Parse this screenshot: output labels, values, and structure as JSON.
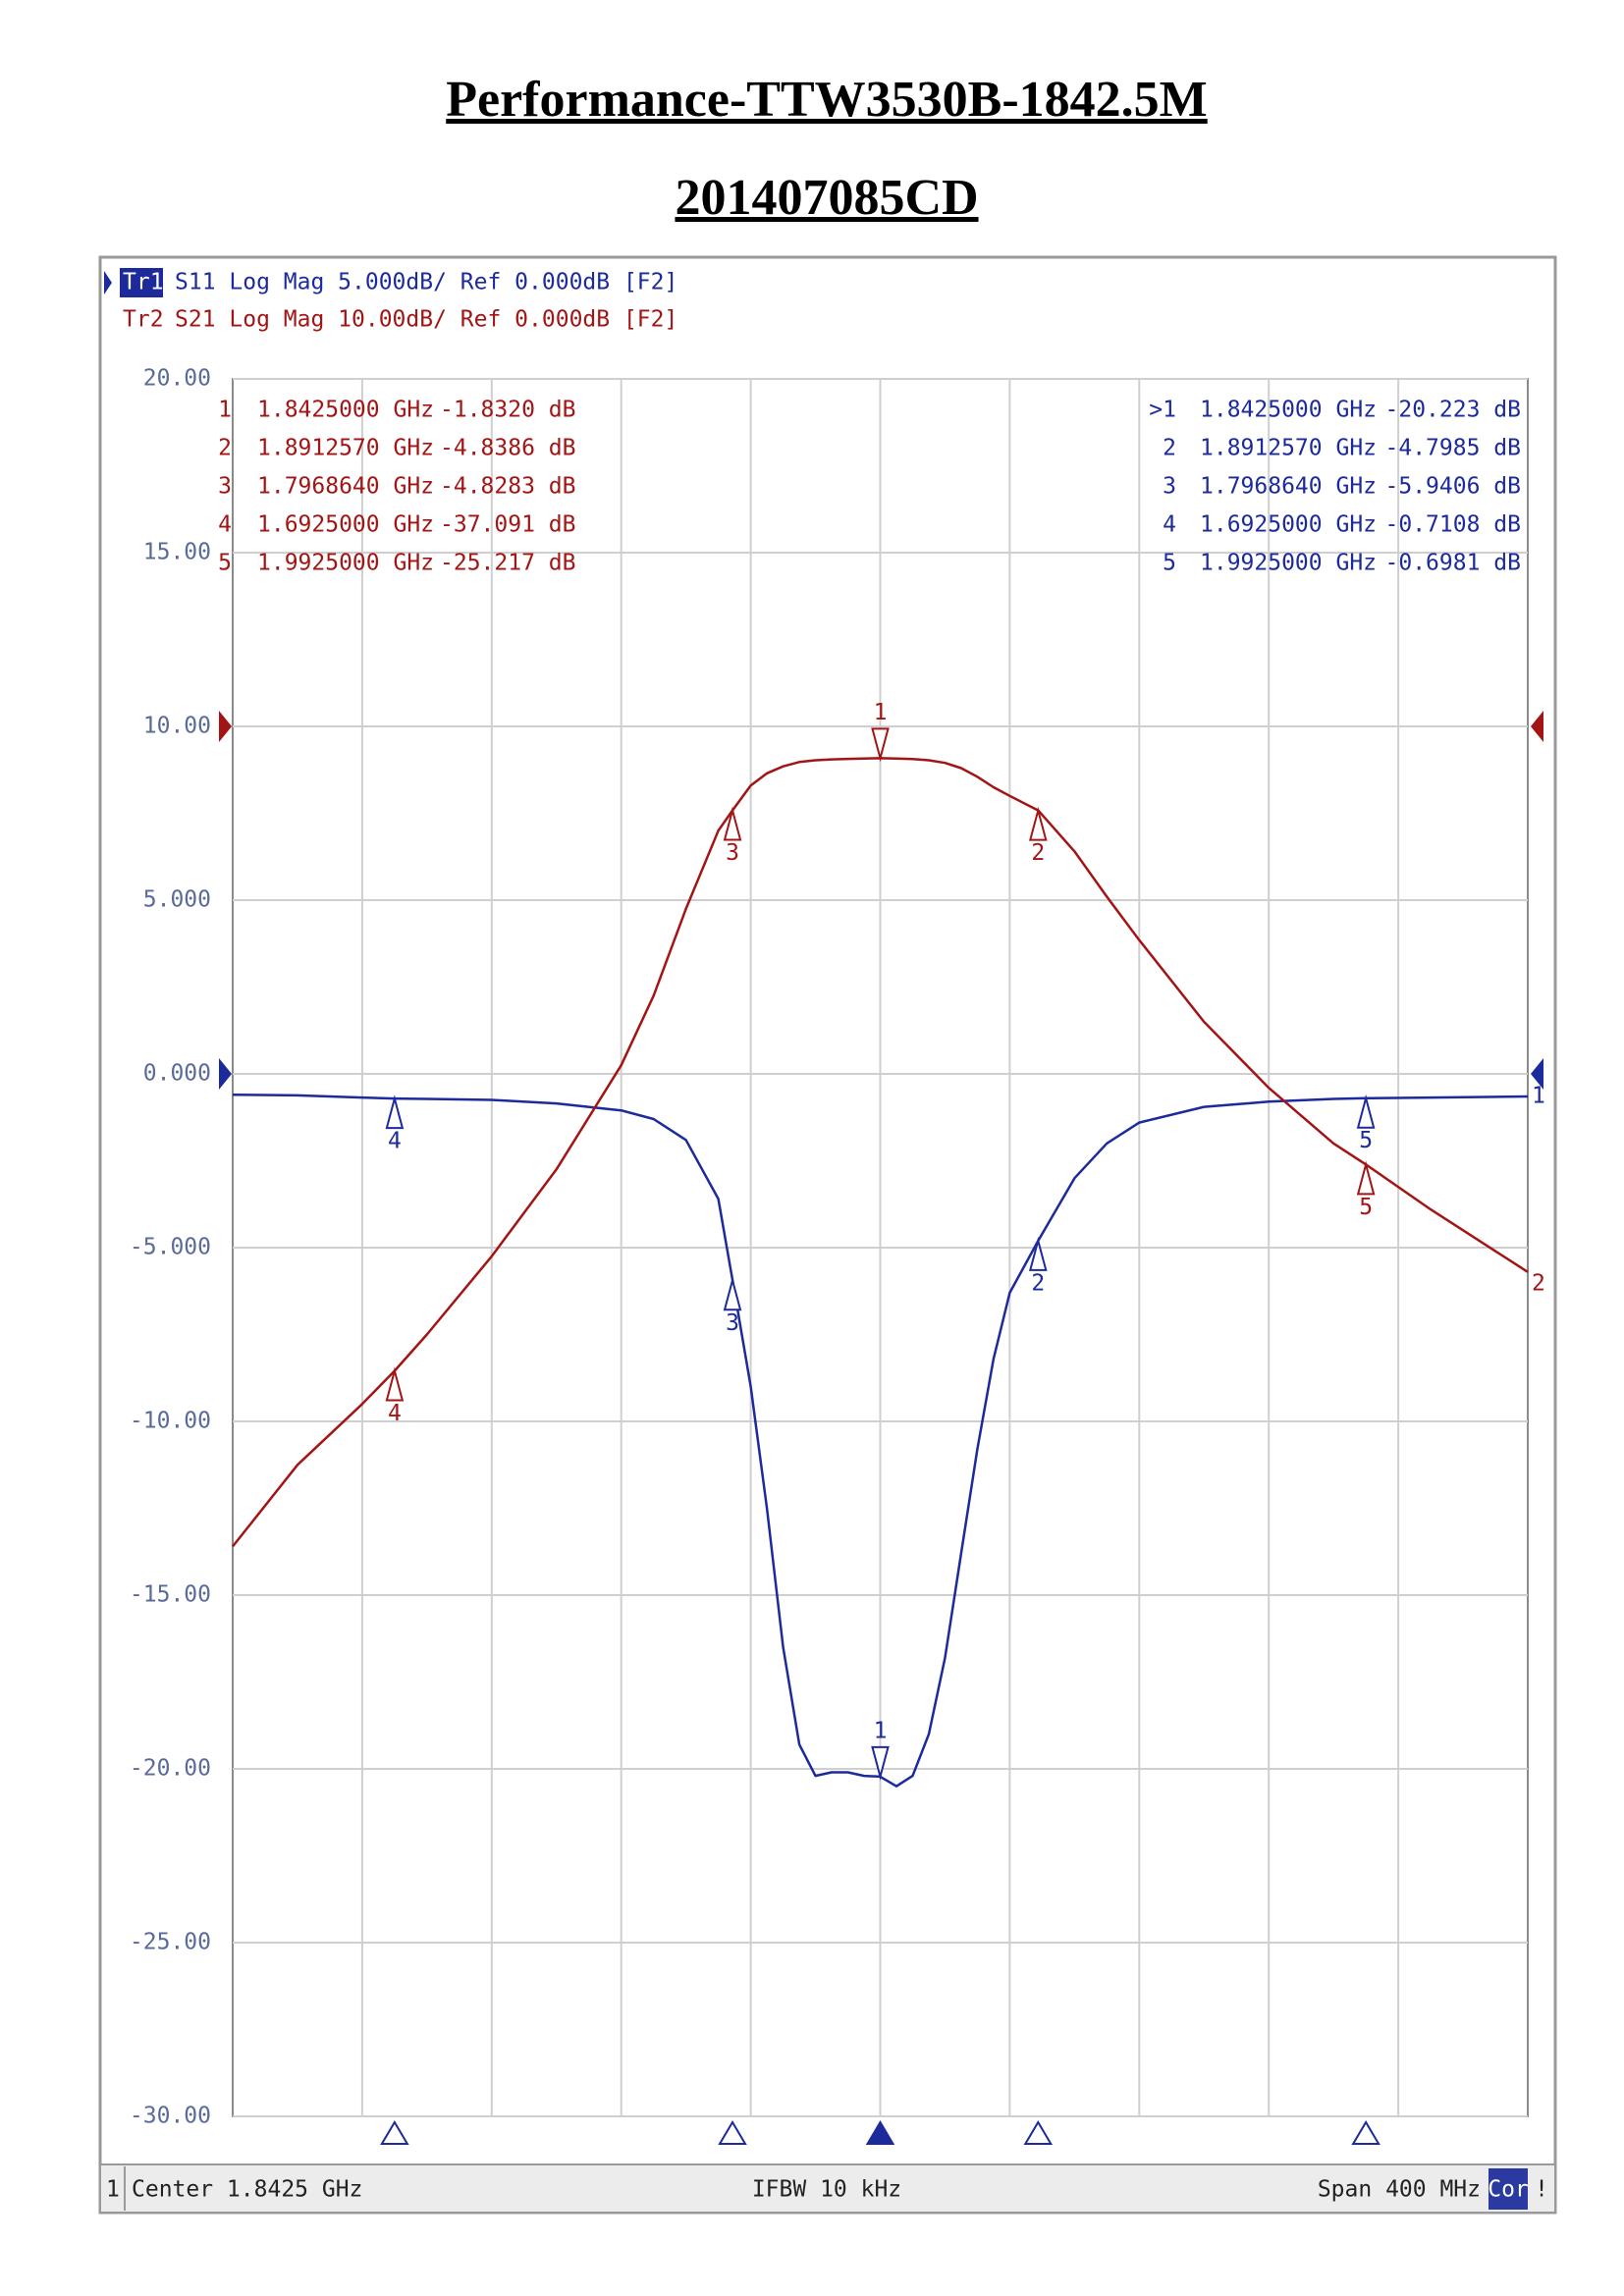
{
  "chart_data": {
    "type": "line",
    "title": "Performance-TTW3530B-1842.5M",
    "subtitle": "201407085CD",
    "xlim": [
      1.6425,
      2.0425
    ],
    "ylim": [
      -30,
      20
    ],
    "y2lim": [
      -80,
      20
    ],
    "yticks": [
      {
        "value": 20,
        "label": "20.00"
      },
      {
        "value": 15,
        "label": "15.00"
      },
      {
        "value": 10,
        "label": "10.00"
      },
      {
        "value": 5,
        "label": "5.000"
      },
      {
        "value": 0,
        "label": "0.000"
      },
      {
        "value": -5,
        "label": "-5.000"
      },
      {
        "value": -10,
        "label": "-10.00"
      },
      {
        "value": -15,
        "label": "-15.00"
      },
      {
        "value": -20,
        "label": "-20.00"
      },
      {
        "value": -25,
        "label": "-25.00"
      },
      {
        "value": -30,
        "label": "-30.00"
      }
    ],
    "grid": true,
    "x": [
      1.6425,
      1.6625,
      1.6825,
      1.6925,
      1.7025,
      1.7225,
      1.7425,
      1.7625,
      1.7725,
      1.7825,
      1.7925,
      1.7969,
      1.8025,
      1.8075,
      1.8125,
      1.8175,
      1.8225,
      1.8275,
      1.8325,
      1.8375,
      1.8425,
      1.8475,
      1.8525,
      1.8575,
      1.8625,
      1.8675,
      1.8725,
      1.8775,
      1.8825,
      1.8913,
      1.9025,
      1.9125,
      1.9225,
      1.9425,
      1.9625,
      1.9825,
      1.9925,
      2.0125,
      2.0425
    ],
    "series": [
      {
        "name": "Tr1",
        "description": "S11 Log Mag 5.000dB/ Ref 0.000dB [F2]",
        "color": "#1c2a9c",
        "axis": "y",
        "ref": 0,
        "trace_number": "1",
        "values": [
          -0.6,
          -0.62,
          -0.68,
          -0.71,
          -0.72,
          -0.75,
          -0.85,
          -1.05,
          -1.3,
          -1.9,
          -3.6,
          -5.94,
          -9.0,
          -12.5,
          -16.5,
          -19.3,
          -20.2,
          -20.1,
          -20.1,
          -20.2,
          -20.223,
          -20.5,
          -20.2,
          -19.0,
          -16.8,
          -13.8,
          -10.8,
          -8.2,
          -6.3,
          -4.8,
          -3.0,
          -2.0,
          -1.4,
          -0.95,
          -0.8,
          -0.72,
          -0.7,
          -0.68,
          -0.65
        ],
        "markers": [
          {
            "label": "1",
            "table_label": ">1",
            "active": true,
            "x": 1.8425,
            "value": -20.223,
            "x_label": "1.8425000 GHz",
            "value_label": "-20.223 dB"
          },
          {
            "label": "2",
            "table_label": "2",
            "active": false,
            "x": 1.891257,
            "value": -4.7985,
            "x_label": "1.8912570 GHz",
            "value_label": "-4.7985 dB"
          },
          {
            "label": "3",
            "table_label": "3",
            "active": false,
            "x": 1.796864,
            "value": -5.9406,
            "x_label": "1.7968640 GHz",
            "value_label": "-5.9406 dB"
          },
          {
            "label": "4",
            "table_label": "4",
            "active": false,
            "x": 1.6925,
            "value": -0.7108,
            "x_label": "1.6925000 GHz",
            "value_label": "-0.7108 dB"
          },
          {
            "label": "5",
            "table_label": "5",
            "active": false,
            "x": 1.9925,
            "value": -0.6981,
            "x_label": "1.9925000 GHz",
            "value_label": "-0.6981 dB"
          }
        ]
      },
      {
        "name": "Tr2",
        "description": "S21 Log Mag 10.00dB/ Ref 0.000dB [F2]",
        "color": "#a31515",
        "axis": "y2",
        "ref": 0,
        "trace_number": "2",
        "values": [
          -47.2,
          -42.5,
          -39.0,
          -37.091,
          -35.0,
          -30.5,
          -25.5,
          -19.5,
          -15.5,
          -10.5,
          -6.0,
          -4.8283,
          -3.4,
          -2.7,
          -2.3,
          -2.05,
          -1.95,
          -1.9,
          -1.87,
          -1.85,
          -1.832,
          -1.85,
          -1.88,
          -1.95,
          -2.1,
          -2.4,
          -2.9,
          -3.5,
          -4.0,
          -4.8386,
          -7.2,
          -9.8,
          -12.3,
          -17.0,
          -20.8,
          -24.0,
          -25.217,
          -27.8,
          -31.4
        ],
        "markers": [
          {
            "label": "1",
            "table_label": "1",
            "active": false,
            "x": 1.8425,
            "value": -1.832,
            "x_label": "1.8425000 GHz",
            "value_label": "-1.8320 dB"
          },
          {
            "label": "2",
            "table_label": "2",
            "active": false,
            "x": 1.891257,
            "value": -4.8386,
            "x_label": "1.8912570 GHz",
            "value_label": "-4.8386 dB"
          },
          {
            "label": "3",
            "table_label": "3",
            "active": false,
            "x": 1.796864,
            "value": -4.8283,
            "x_label": "1.7968640 GHz",
            "value_label": "-4.8283 dB"
          },
          {
            "label": "4",
            "table_label": "4",
            "active": false,
            "x": 1.6925,
            "value": -37.091,
            "x_label": "1.6925000 GHz",
            "value_label": "-37.091 dB"
          },
          {
            "label": "5",
            "table_label": "5",
            "active": false,
            "x": 1.9925,
            "value": -25.217,
            "x_label": "1.9925000 GHz",
            "value_label": "-25.217 dB"
          }
        ]
      }
    ],
    "footer": {
      "channel": "1",
      "center": "Center 1.8425 GHz",
      "ifbw": "IFBW 10 kHz",
      "span": "Span 400 MHz",
      "status": "Cor",
      "flag": "!"
    }
  }
}
